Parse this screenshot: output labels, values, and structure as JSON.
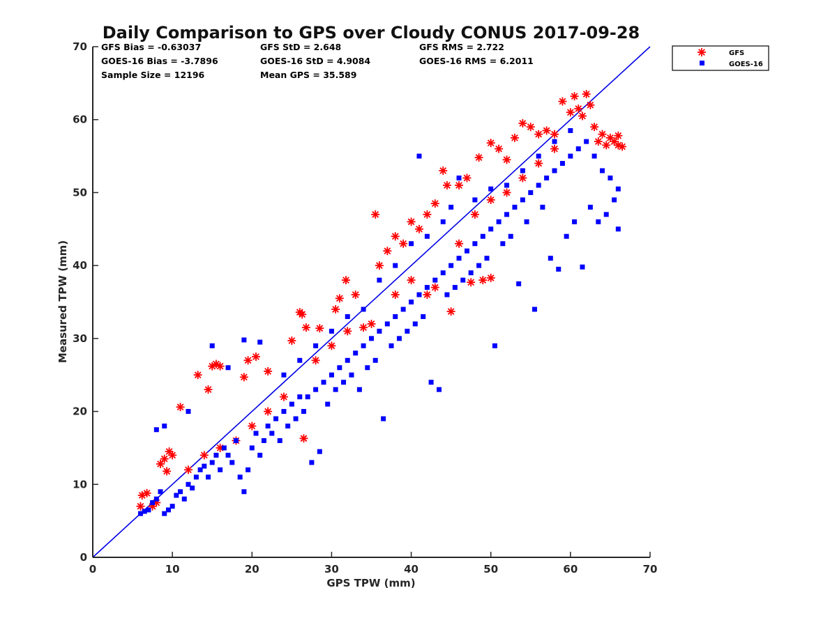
{
  "colors": {
    "gfs": "#ff0000",
    "goes16": "#0000ff",
    "axis": "#262626",
    "identity_line": "#0000e6"
  },
  "chart_data": {
    "type": "scatter",
    "title": "Daily Comparison to GPS over Cloudy CONUS 2017-09-28",
    "xlabel": "GPS TPW (mm)",
    "ylabel": "Measured TPW (mm)",
    "xlim": [
      0,
      70
    ],
    "ylim": [
      0,
      70
    ],
    "xticks": [
      "0",
      "10",
      "20",
      "30",
      "40",
      "50",
      "60",
      "70"
    ],
    "yticks": [
      "0",
      "10",
      "20",
      "30",
      "40",
      "50",
      "60",
      "70"
    ],
    "grid": false,
    "legend_position": "outside-top-right",
    "reference_line": {
      "name": "1:1 line",
      "x": [
        0,
        70
      ],
      "y": [
        0,
        70
      ]
    },
    "stats": [
      "GFS Bias = -0.63037",
      "GFS StD = 2.648",
      "GFS RMS = 2.722",
      "GOES-16 Bias = -3.7896",
      "GOES-16 StD = 4.9084",
      "GOES-16 RMS = 6.2011",
      "Sample Size = 12196",
      "Mean GPS = 35.589"
    ],
    "series": [
      {
        "name": "GFS",
        "marker": "asterisk",
        "points": [
          [
            6,
            7
          ],
          [
            6.2,
            8.5
          ],
          [
            6.8,
            8.8
          ],
          [
            7.5,
            7
          ],
          [
            8,
            7.5
          ],
          [
            8.5,
            12.8
          ],
          [
            9,
            13.5
          ],
          [
            9.3,
            11.8
          ],
          [
            9.6,
            14.5
          ],
          [
            10,
            14
          ],
          [
            11,
            20.6
          ],
          [
            13.2,
            25
          ],
          [
            14.5,
            23
          ],
          [
            15,
            26.2
          ],
          [
            15.5,
            26.5
          ],
          [
            16,
            26.2
          ],
          [
            19,
            24.7
          ],
          [
            19.5,
            27
          ],
          [
            20.5,
            27.5
          ],
          [
            22,
            25.5
          ],
          [
            25,
            29.7
          ],
          [
            26,
            33.6
          ],
          [
            26.3,
            33.3
          ],
          [
            26.8,
            31.5
          ],
          [
            26.5,
            16.3
          ],
          [
            28.5,
            31.4
          ],
          [
            30.5,
            34
          ],
          [
            31,
            35.5
          ],
          [
            31.8,
            38
          ],
          [
            33,
            36
          ],
          [
            35.5,
            47
          ],
          [
            36,
            40
          ],
          [
            37,
            42
          ],
          [
            38,
            44
          ],
          [
            39,
            43
          ],
          [
            40,
            46
          ],
          [
            41,
            45
          ],
          [
            42,
            47
          ],
          [
            43,
            48.5
          ],
          [
            44,
            53
          ],
          [
            44.5,
            51
          ],
          [
            45,
            33.7
          ],
          [
            46,
            51
          ],
          [
            47,
            52
          ],
          [
            47.5,
            37.7
          ],
          [
            48.5,
            54.8
          ],
          [
            49,
            38
          ],
          [
            50,
            38.3
          ],
          [
            50,
            56.8
          ],
          [
            51,
            56
          ],
          [
            52,
            54.5
          ],
          [
            53,
            57.5
          ],
          [
            54,
            59.5
          ],
          [
            55,
            59
          ],
          [
            56,
            58
          ],
          [
            57,
            58.5
          ],
          [
            58,
            58
          ],
          [
            59,
            62.5
          ],
          [
            60,
            61
          ],
          [
            60.5,
            63.2
          ],
          [
            61,
            61.5
          ],
          [
            61.5,
            60.5
          ],
          [
            62,
            63.5
          ],
          [
            62.5,
            62
          ],
          [
            63,
            59
          ],
          [
            63.5,
            57
          ],
          [
            64,
            58
          ],
          [
            64.5,
            56.5
          ],
          [
            65,
            57.5
          ],
          [
            65.5,
            57
          ],
          [
            66,
            56.5
          ],
          [
            66.5,
            56.3
          ],
          [
            66,
            57.8
          ],
          [
            40,
            38
          ],
          [
            42,
            36
          ],
          [
            43,
            37
          ],
          [
            38,
            36
          ],
          [
            35,
            32
          ],
          [
            34,
            31.5
          ],
          [
            46,
            43
          ],
          [
            24,
            22
          ],
          [
            22,
            20
          ],
          [
            20,
            18
          ],
          [
            18,
            16
          ],
          [
            16,
            15
          ],
          [
            14,
            14
          ],
          [
            12,
            12
          ],
          [
            28,
            27
          ],
          [
            30,
            29
          ],
          [
            32,
            31
          ],
          [
            50,
            49
          ],
          [
            52,
            50
          ],
          [
            54,
            52
          ],
          [
            56,
            54
          ],
          [
            58,
            56
          ],
          [
            48,
            47
          ]
        ]
      },
      {
        "name": "GOES-16",
        "marker": "square",
        "points": [
          [
            6,
            6
          ],
          [
            6.5,
            6.3
          ],
          [
            7,
            6.5
          ],
          [
            7.5,
            7.5
          ],
          [
            8,
            8
          ],
          [
            8.5,
            9
          ],
          [
            9,
            6
          ],
          [
            9.5,
            6.5
          ],
          [
            10,
            7
          ],
          [
            10.5,
            8.5
          ],
          [
            11,
            9
          ],
          [
            11.5,
            8
          ],
          [
            12,
            10
          ],
          [
            12.5,
            9.5
          ],
          [
            13,
            11
          ],
          [
            13.5,
            12
          ],
          [
            14,
            12.5
          ],
          [
            14.5,
            11
          ],
          [
            15,
            13
          ],
          [
            15.5,
            14
          ],
          [
            16,
            12
          ],
          [
            16.5,
            15
          ],
          [
            17,
            14
          ],
          [
            17.5,
            13
          ],
          [
            18,
            16
          ],
          [
            18.5,
            11
          ],
          [
            19,
            9
          ],
          [
            19.5,
            12
          ],
          [
            20,
            15
          ],
          [
            20.5,
            17
          ],
          [
            21,
            14
          ],
          [
            21.5,
            16
          ],
          [
            22,
            18
          ],
          [
            22.5,
            17
          ],
          [
            23,
            19
          ],
          [
            23.5,
            16
          ],
          [
            24,
            20
          ],
          [
            24.5,
            18
          ],
          [
            25,
            21
          ],
          [
            25.5,
            19
          ],
          [
            26,
            22
          ],
          [
            26.5,
            20
          ],
          [
            27,
            22
          ],
          [
            27.5,
            13
          ],
          [
            28,
            23
          ],
          [
            28.5,
            14.5
          ],
          [
            29,
            24
          ],
          [
            29.5,
            21
          ],
          [
            30,
            25
          ],
          [
            30.5,
            23
          ],
          [
            31,
            26
          ],
          [
            31.5,
            24
          ],
          [
            32,
            27
          ],
          [
            32.5,
            25
          ],
          [
            33,
            28
          ],
          [
            33.5,
            23
          ],
          [
            34,
            29
          ],
          [
            34.5,
            26
          ],
          [
            35,
            30
          ],
          [
            35.5,
            27
          ],
          [
            36,
            31
          ],
          [
            36.5,
            19
          ],
          [
            37,
            32
          ],
          [
            37.5,
            29
          ],
          [
            38,
            33
          ],
          [
            38.5,
            30
          ],
          [
            39,
            34
          ],
          [
            39.5,
            31
          ],
          [
            40,
            35
          ],
          [
            40.5,
            32
          ],
          [
            41,
            36
          ],
          [
            41.5,
            33
          ],
          [
            42,
            37
          ],
          [
            42.5,
            24
          ],
          [
            43,
            38
          ],
          [
            43.5,
            23
          ],
          [
            44,
            39
          ],
          [
            44.5,
            36
          ],
          [
            45,
            40
          ],
          [
            45.5,
            37
          ],
          [
            46,
            41
          ],
          [
            46.5,
            38
          ],
          [
            47,
            42
          ],
          [
            47.5,
            39
          ],
          [
            48,
            43
          ],
          [
            48.5,
            40
          ],
          [
            49,
            44
          ],
          [
            49.5,
            41
          ],
          [
            50,
            45
          ],
          [
            50.5,
            29
          ],
          [
            51,
            46
          ],
          [
            51.5,
            43
          ],
          [
            52,
            47
          ],
          [
            52.5,
            44
          ],
          [
            53,
            48
          ],
          [
            53.5,
            37.5
          ],
          [
            54,
            49
          ],
          [
            54.5,
            46
          ],
          [
            55,
            50
          ],
          [
            55.5,
            34
          ],
          [
            56,
            51
          ],
          [
            56.5,
            48
          ],
          [
            57,
            52
          ],
          [
            57.5,
            41
          ],
          [
            58,
            53
          ],
          [
            58.5,
            39.5
          ],
          [
            59,
            54
          ],
          [
            59.5,
            44
          ],
          [
            60,
            55
          ],
          [
            60.5,
            46
          ],
          [
            61,
            56
          ],
          [
            61.5,
            39.8
          ],
          [
            62,
            57
          ],
          [
            62.5,
            48
          ],
          [
            63,
            55
          ],
          [
            63.5,
            46
          ],
          [
            64,
            53
          ],
          [
            64.5,
            47
          ],
          [
            65,
            52
          ],
          [
            66,
            45
          ],
          [
            66,
            50.5
          ],
          [
            65.5,
            49
          ],
          [
            8,
            17.5
          ],
          [
            9,
            18
          ],
          [
            12,
            20
          ],
          [
            15,
            29
          ],
          [
            17,
            26
          ],
          [
            19,
            29.8
          ],
          [
            21,
            29.5
          ],
          [
            41,
            55
          ],
          [
            46,
            52
          ],
          [
            45,
            48
          ],
          [
            36,
            38
          ],
          [
            38,
            40
          ],
          [
            40,
            43
          ],
          [
            42,
            44
          ],
          [
            44,
            46
          ],
          [
            48,
            49
          ],
          [
            50,
            50.5
          ],
          [
            52,
            51
          ],
          [
            54,
            53
          ],
          [
            56,
            55
          ],
          [
            58,
            57
          ],
          [
            60,
            58.5
          ],
          [
            34,
            34
          ],
          [
            32,
            33
          ],
          [
            30,
            31
          ],
          [
            28,
            29
          ],
          [
            26,
            27
          ],
          [
            24,
            25
          ]
        ]
      }
    ]
  }
}
